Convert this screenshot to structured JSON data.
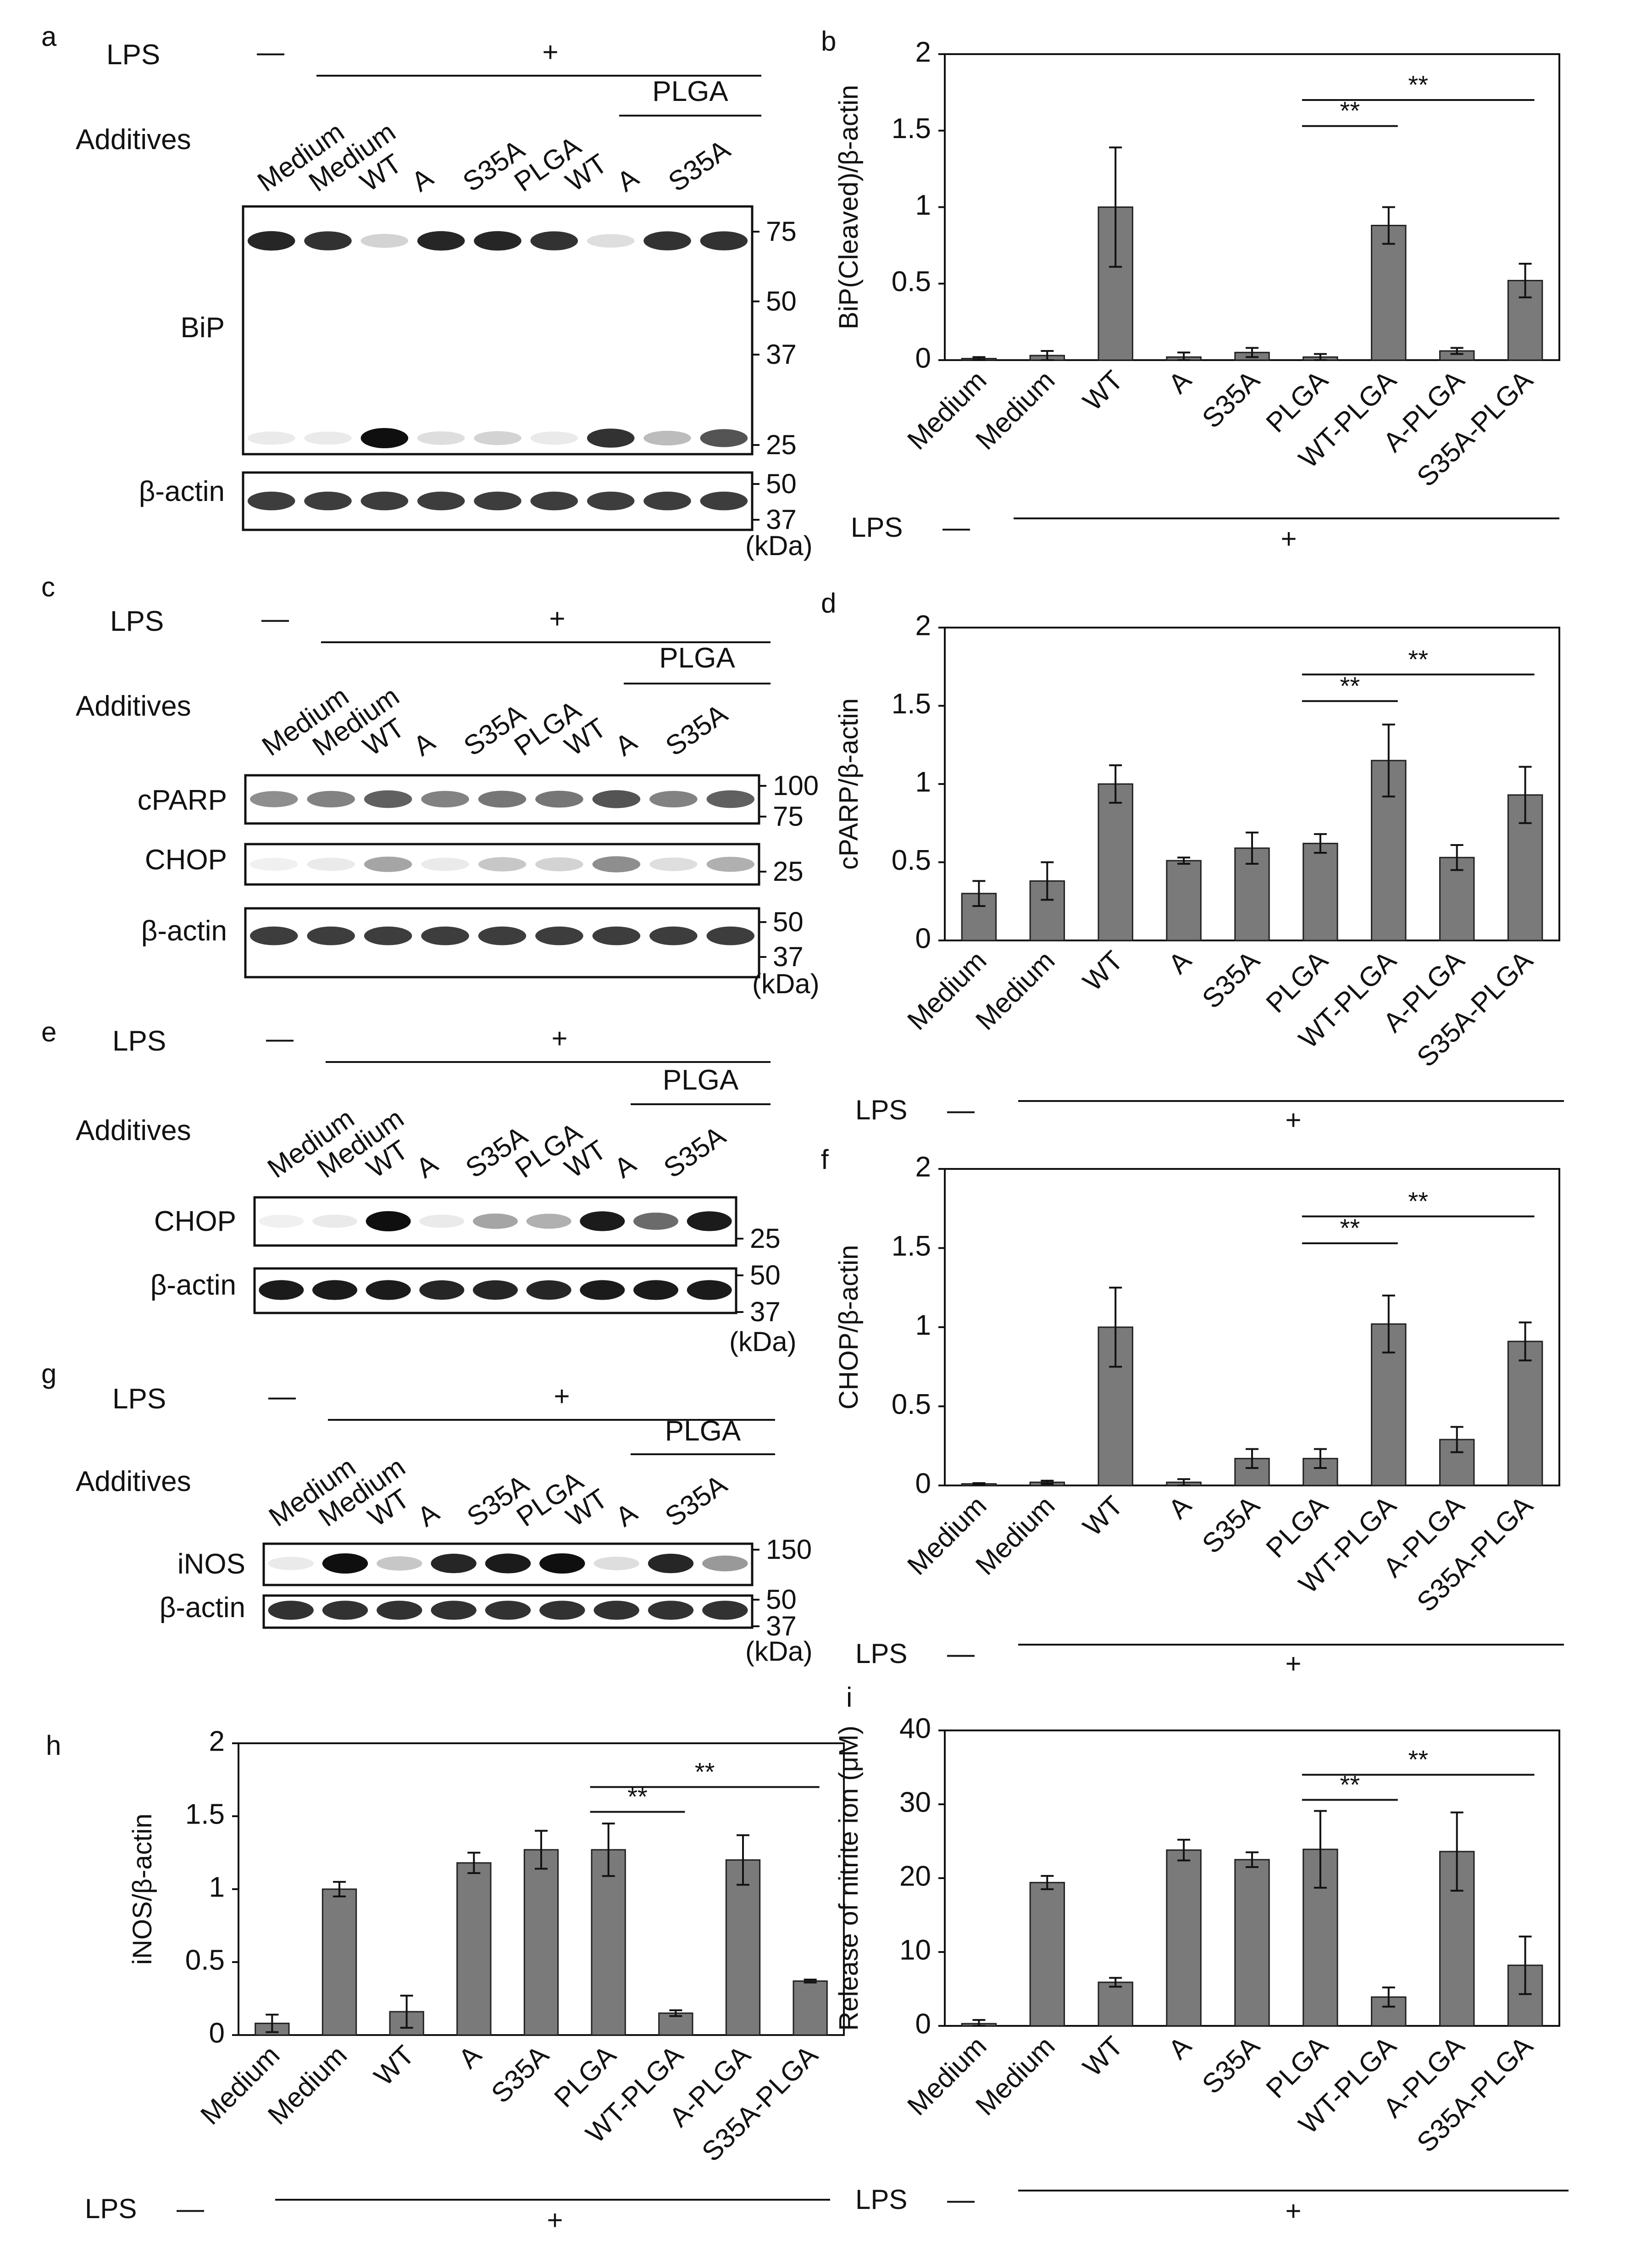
{
  "figure": {
    "common": {
      "lps_label": "LPS",
      "lps_minus": "—",
      "lps_plus": "+",
      "additives_label": "Additives",
      "plga_label": "PLGA",
      "kda_label": "(kDa)",
      "sig_marker": "**"
    },
    "blots": [
      {
        "panel": "a",
        "lanes": [
          "Medium",
          "Medium",
          "WT",
          "A",
          "S35A",
          "PLGA",
          "WT",
          "A",
          "S35A"
        ],
        "strips": [
          {
            "label": "BiP",
            "markers": [
              "75",
              "50",
              "37",
              "25"
            ],
            "bands": [
              {
                "row": "top",
                "intensity": [
                  0.9,
                  0.85,
                  0.15,
                  0.9,
                  0.9,
                  0.85,
                  0.1,
                  0.85,
                  0.85
                ]
              },
              {
                "row": "bottom",
                "intensity": [
                  0.05,
                  0.05,
                  1.0,
                  0.1,
                  0.15,
                  0.05,
                  0.85,
                  0.25,
                  0.7
                ]
              }
            ]
          },
          {
            "label": "β-actin",
            "markers": [
              "50",
              "37"
            ],
            "bands": [
              {
                "row": "mid",
                "intensity": [
                  0.8,
                  0.8,
                  0.8,
                  0.8,
                  0.8,
                  0.8,
                  0.8,
                  0.8,
                  0.8
                ]
              }
            ]
          }
        ]
      },
      {
        "panel": "c",
        "lanes": [
          "Medium",
          "Medium",
          "WT",
          "A",
          "S35A",
          "PLGA",
          "WT",
          "A",
          "S35A"
        ],
        "strips": [
          {
            "label": "cPARP",
            "markers": [
              "100",
              "75"
            ],
            "bands": [
              {
                "row": "mid",
                "intensity": [
                  0.45,
                  0.5,
                  0.65,
                  0.5,
                  0.55,
                  0.55,
                  0.7,
                  0.5,
                  0.65
                ]
              }
            ]
          },
          {
            "label": "CHOP",
            "markers": [
              "25"
            ],
            "bands": [
              {
                "row": "mid",
                "intensity": [
                  0.02,
                  0.05,
                  0.35,
                  0.05,
                  0.2,
                  0.15,
                  0.45,
                  0.1,
                  0.3
                ]
              }
            ]
          },
          {
            "label": "β-actin",
            "markers": [
              "50",
              "37"
            ],
            "bands": [
              {
                "row": "mid",
                "intensity": [
                  0.8,
                  0.8,
                  0.8,
                  0.8,
                  0.8,
                  0.8,
                  0.8,
                  0.8,
                  0.8
                ]
              }
            ]
          }
        ]
      },
      {
        "panel": "e",
        "lanes": [
          "Medium",
          "Medium",
          "WT",
          "A",
          "S35A",
          "PLGA",
          "WT",
          "A",
          "S35A"
        ],
        "strips": [
          {
            "label": "CHOP",
            "markers": [
              "25"
            ],
            "bands": [
              {
                "row": "mid",
                "intensity": [
                  0.02,
                  0.05,
                  1.0,
                  0.05,
                  0.35,
                  0.3,
                  0.95,
                  0.6,
                  0.95
                ]
              }
            ]
          },
          {
            "label": "β-actin",
            "markers": [
              "50",
              "37"
            ],
            "bands": [
              {
                "row": "mid",
                "intensity": [
                  0.95,
                  0.95,
                  0.95,
                  0.9,
                  0.9,
                  0.9,
                  0.95,
                  0.95,
                  0.95
                ]
              }
            ]
          }
        ]
      },
      {
        "panel": "g",
        "lanes": [
          "Medium",
          "Medium",
          "WT",
          "A",
          "S35A",
          "PLGA",
          "WT",
          "A",
          "S35A"
        ],
        "strips": [
          {
            "label": "iNOS",
            "markers": [
              "150"
            ],
            "bands": [
              {
                "row": "mid",
                "intensity": [
                  0.05,
                  1.0,
                  0.2,
                  0.9,
                  0.95,
                  1.0,
                  0.1,
                  0.9,
                  0.4
                ]
              }
            ]
          },
          {
            "label": "β-actin",
            "markers": [
              "50",
              "37"
            ],
            "bands": [
              {
                "row": "mid",
                "intensity": [
                  0.85,
                  0.85,
                  0.85,
                  0.85,
                  0.85,
                  0.85,
                  0.85,
                  0.85,
                  0.85
                ]
              }
            ]
          }
        ]
      }
    ]
  },
  "chart_data": [
    {
      "panel": "b",
      "type": "bar",
      "ylabel": "BiP(Cleaved)/β-actin",
      "ylim": [
        0,
        2
      ],
      "yticks": [
        "0",
        "0.5",
        "1",
        "1.5",
        "2"
      ],
      "categories": [
        "Medium",
        "Medium",
        "WT",
        "A",
        "S35A",
        "PLGA",
        "WT-PLGA",
        "A-PLGA",
        "S35A-PLGA"
      ],
      "values": [
        0.01,
        0.03,
        1.0,
        0.02,
        0.05,
        0.02,
        0.88,
        0.06,
        0.52
      ],
      "errors": [
        0.01,
        0.03,
        0.39,
        0.03,
        0.03,
        0.02,
        0.12,
        0.02,
        0.11
      ],
      "significance": [
        {
          "from": "PLGA",
          "to": "WT-PLGA",
          "label": "**"
        },
        {
          "from": "PLGA",
          "to": "S35A-PLGA",
          "label": "**"
        }
      ]
    },
    {
      "panel": "d",
      "type": "bar",
      "ylabel": "cPARP/β-actin",
      "ylim": [
        0,
        2
      ],
      "yticks": [
        "0",
        "0.5",
        "1",
        "1.5",
        "2"
      ],
      "categories": [
        "Medium",
        "Medium",
        "WT",
        "A",
        "S35A",
        "PLGA",
        "WT-PLGA",
        "A-PLGA",
        "S35A-PLGA"
      ],
      "values": [
        0.3,
        0.38,
        1.0,
        0.51,
        0.59,
        0.62,
        1.15,
        0.53,
        0.93
      ],
      "errors": [
        0.08,
        0.12,
        0.12,
        0.02,
        0.1,
        0.06,
        0.23,
        0.08,
        0.18
      ],
      "significance": [
        {
          "from": "PLGA",
          "to": "WT-PLGA",
          "label": "**"
        },
        {
          "from": "PLGA",
          "to": "S35A-PLGA",
          "label": "**"
        }
      ]
    },
    {
      "panel": "f",
      "type": "bar",
      "ylabel": "CHOP/β-actin",
      "ylim": [
        0,
        2
      ],
      "yticks": [
        "0",
        "0.5",
        "1",
        "1.5",
        "2"
      ],
      "categories": [
        "Medium",
        "Medium",
        "WT",
        "A",
        "S35A",
        "PLGA",
        "WT-PLGA",
        "A-PLGA",
        "S35A-PLGA"
      ],
      "values": [
        0.01,
        0.02,
        1.0,
        0.02,
        0.17,
        0.17,
        1.02,
        0.29,
        0.91
      ],
      "errors": [
        0.005,
        0.01,
        0.25,
        0.02,
        0.06,
        0.06,
        0.18,
        0.08,
        0.12
      ],
      "significance": [
        {
          "from": "PLGA",
          "to": "WT-PLGA",
          "label": "**"
        },
        {
          "from": "PLGA",
          "to": "S35A-PLGA",
          "label": "**"
        }
      ]
    },
    {
      "panel": "h",
      "type": "bar",
      "ylabel": "iNOS/β-actin",
      "ylim": [
        0,
        2
      ],
      "yticks": [
        "0",
        "0.5",
        "1",
        "1.5",
        "2"
      ],
      "categories": [
        "Medium",
        "Medium",
        "WT",
        "A",
        "S35A",
        "PLGA",
        "WT-PLGA",
        "A-PLGA",
        "S35A-PLGA"
      ],
      "values": [
        0.08,
        1.0,
        0.16,
        1.18,
        1.27,
        1.27,
        0.15,
        1.2,
        0.37
      ],
      "errors": [
        0.06,
        0.05,
        0.11,
        0.07,
        0.13,
        0.18,
        0.02,
        0.17,
        0.01
      ],
      "significance": [
        {
          "from": "PLGA",
          "to": "WT-PLGA",
          "label": "**"
        },
        {
          "from": "PLGA",
          "to": "S35A-PLGA",
          "label": "**"
        }
      ]
    },
    {
      "panel": "i",
      "type": "bar",
      "ylabel": "Release of nitrite ion (μM)",
      "ylim": [
        0,
        40
      ],
      "yticks": [
        "0",
        "10",
        "20",
        "30",
        "40"
      ],
      "categories": [
        "Medium",
        "Medium",
        "WT",
        "A",
        "S35A",
        "PLGA",
        "WT-PLGA",
        "A-PLGA",
        "S35A-PLGA"
      ],
      "values": [
        0.3,
        19.4,
        5.9,
        23.8,
        22.5,
        23.9,
        3.9,
        23.6,
        8.2
      ],
      "errors": [
        0.5,
        0.9,
        0.6,
        1.4,
        1.0,
        5.2,
        1.3,
        5.3,
        3.9
      ],
      "significance": [
        {
          "from": "PLGA",
          "to": "WT-PLGA",
          "label": "**"
        },
        {
          "from": "PLGA",
          "to": "S35A-PLGA",
          "label": "**"
        }
      ]
    }
  ]
}
